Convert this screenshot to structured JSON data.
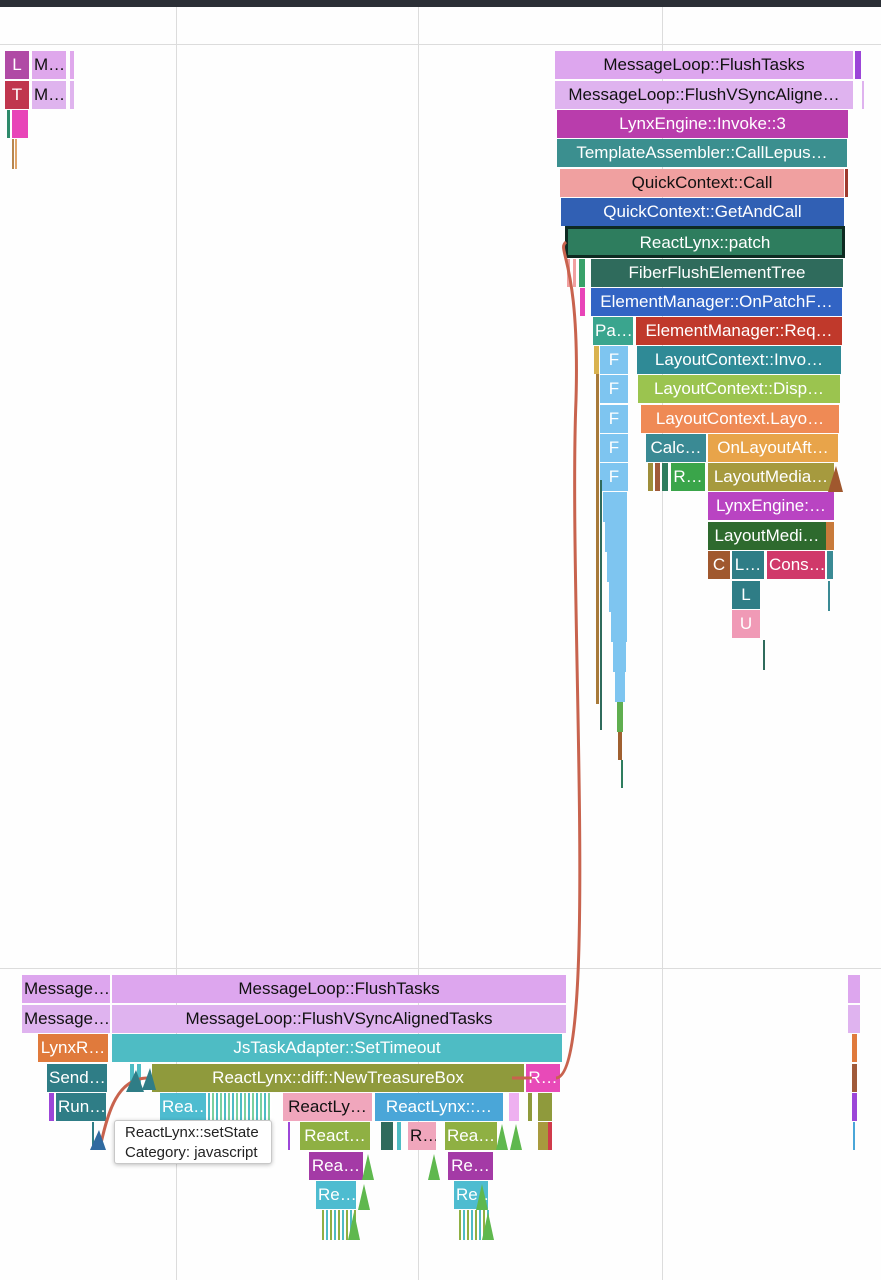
{
  "track_top": {
    "row1": {
      "loop_a": "L",
      "loop_b": "M…",
      "flush_tasks": "MessageLoop::FlushTasks"
    },
    "row2": {
      "task_a": "T",
      "task_b": "M…",
      "flush_vsync": "MessageLoop::FlushVSyncAligne…"
    },
    "invoke": "LynxEngine::Invoke::3",
    "call_lepus": "TemplateAssembler::CallLepus…",
    "quick_call": "QuickContext::Call",
    "get_and_call": "QuickContext::GetAndCall",
    "patch": "ReactLynx::patch",
    "fiber_flush": "FiberFlushElementTree",
    "on_patch": "ElementManager::OnPatchF…",
    "pa": "Pa…",
    "req": "ElementManager::Req…",
    "layout_invoke": "LayoutContext::Invo…",
    "layout_disp": "LayoutContext::Disp…",
    "layout_layo": "LayoutContext.Layo…",
    "calc": "Calc…",
    "on_layout_aft": "OnLayoutAft…",
    "r": "R…",
    "layout_media_1": "LayoutMedia…",
    "lynx_engine": "LynxEngine:…",
    "layout_media_2": "LayoutMedi…",
    "c": "C",
    "l_dot": "L…",
    "cons": "Cons…",
    "l": "L",
    "u": "U",
    "f": "F"
  },
  "track_bottom": {
    "msg_a": "Message…",
    "flush_tasks": "MessageLoop::FlushTasks",
    "msg_b": "Message…",
    "flush_vsync": "MessageLoop::FlushVSyncAlignedTasks",
    "lynx_r": "LynxR…",
    "set_timeout": "JsTaskAdapter::SetTimeout",
    "send": "Send…",
    "new_treasure_box": "ReactLynx::diff::NewTreasureBox",
    "r_pink": "R…",
    "run": "Run…",
    "rea_1": "Rea…",
    "reactly": "ReactLy…",
    "reactlynx_dot": "ReactLynx::…",
    "react_dot": "React…",
    "r_small": "R…",
    "rea_2": "Rea…",
    "rea_3": "Rea…",
    "re_1": "Re…",
    "re_2": "Re…",
    "re_3": "Re…"
  },
  "tooltip": {
    "name": "ReactLynx::setState",
    "category": "Category: javascript"
  },
  "colors": {
    "background": "#fefefe",
    "flow_arrow": "#c8634e",
    "selection_border": "#0e2a21"
  }
}
